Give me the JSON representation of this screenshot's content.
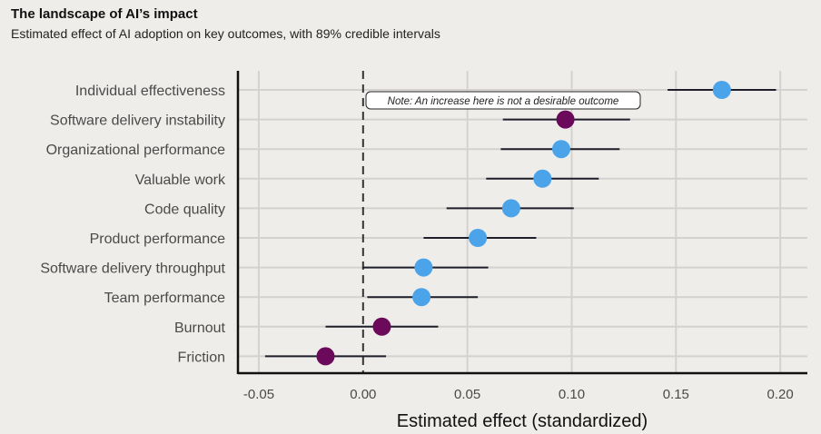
{
  "header": {
    "title": "The landscape of AI’s impact",
    "subtitle": "Estimated effect of AI adoption on key outcomes, with 89% credible intervals"
  },
  "colors": {
    "positive": "#4ba3ea",
    "negative": "#6b0a5a",
    "interval": "#1f1f2b",
    "grid": "#d4d2cf",
    "axis": "#111111"
  },
  "chart_data": {
    "type": "scatter",
    "title": "The landscape of AI’s impact",
    "subtitle": "Estimated effect of AI adoption on key outcomes, with 89% credible intervals",
    "xlabel": "Estimated effect (standardized)",
    "ylabel": "",
    "xlim": [
      -0.06,
      0.213
    ],
    "xticks": [
      -0.05,
      0.0,
      0.05,
      0.1,
      0.15,
      0.2
    ],
    "xtick_labels": [
      "-0.05",
      "0.00",
      "0.05",
      "0.10",
      "0.15",
      "0.20"
    ],
    "grid": true,
    "reference_line": 0.0,
    "points": [
      {
        "category": "Individual effectiveness",
        "estimate": 0.172,
        "lower": 0.146,
        "upper": 0.198,
        "kind": "positive"
      },
      {
        "category": "Software delivery instability",
        "estimate": 0.097,
        "lower": 0.067,
        "upper": 0.128,
        "kind": "negative"
      },
      {
        "category": "Organizational performance",
        "estimate": 0.095,
        "lower": 0.066,
        "upper": 0.123,
        "kind": "positive"
      },
      {
        "category": "Valuable work",
        "estimate": 0.086,
        "lower": 0.059,
        "upper": 0.113,
        "kind": "positive"
      },
      {
        "category": "Code quality",
        "estimate": 0.071,
        "lower": 0.04,
        "upper": 0.101,
        "kind": "positive"
      },
      {
        "category": "Product performance",
        "estimate": 0.055,
        "lower": 0.029,
        "upper": 0.083,
        "kind": "positive"
      },
      {
        "category": "Software delivery throughput",
        "estimate": 0.029,
        "lower": 0.0,
        "upper": 0.06,
        "kind": "positive"
      },
      {
        "category": "Team performance",
        "estimate": 0.028,
        "lower": 0.002,
        "upper": 0.055,
        "kind": "positive"
      },
      {
        "category": "Burnout",
        "estimate": 0.009,
        "lower": -0.018,
        "upper": 0.036,
        "kind": "negative"
      },
      {
        "category": "Friction",
        "estimate": -0.018,
        "lower": -0.047,
        "upper": 0.011,
        "kind": "negative"
      }
    ],
    "annotations": [
      {
        "text": "Note: An increase here is not a desirable outcome",
        "target": "Software delivery instability"
      }
    ]
  }
}
